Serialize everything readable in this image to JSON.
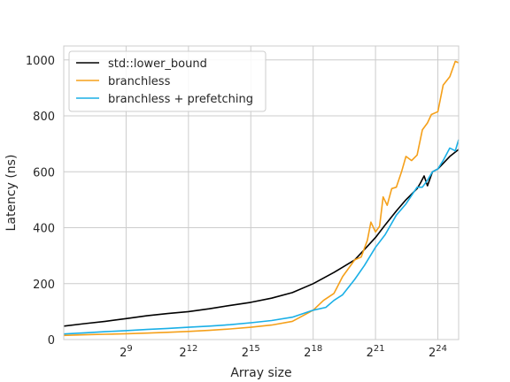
{
  "chart_data": {
    "type": "line",
    "title": "",
    "xlabel": "Array size",
    "ylabel": "Latency (ns)",
    "x_scale": "log2",
    "x_unit": "array size (elements)",
    "xlim": [
      64,
      33554432
    ],
    "ylim": [
      0,
      1050
    ],
    "grid": true,
    "legend_position": "top-left",
    "x_ticks": [
      {
        "value": 512,
        "base": "2",
        "exp": "9"
      },
      {
        "value": 4096,
        "base": "2",
        "exp": "12"
      },
      {
        "value": 32768,
        "base": "2",
        "exp": "15"
      },
      {
        "value": 262144,
        "base": "2",
        "exp": "18"
      },
      {
        "value": 2097152,
        "base": "2",
        "exp": "21"
      },
      {
        "value": 16777216,
        "base": "2",
        "exp": "24"
      }
    ],
    "y_ticks": [
      0,
      200,
      400,
      600,
      800,
      1000
    ],
    "series": [
      {
        "name": "std::lower_bound",
        "color": "#000000",
        "x": [
          64,
          128,
          256,
          512,
          1024,
          2048,
          4096,
          8192,
          16384,
          32768,
          65536,
          131072,
          262144,
          524288,
          1048576,
          1448155,
          2097152,
          2896309,
          4194304,
          5792619,
          8388608,
          9408000,
          10600000,
          11863283,
          14000000,
          16777216,
          20000000,
          25000000,
          33554432
        ],
        "y": [
          48,
          57,
          65,
          75,
          85,
          93,
          100,
          110,
          122,
          133,
          148,
          168,
          200,
          240,
          285,
          322,
          365,
          410,
          460,
          500,
          540,
          560,
          585,
          550,
          600,
          610,
          630,
          655,
          680
        ]
      },
      {
        "name": "branchless",
        "color": "#f5a01a",
        "x": [
          64,
          128,
          256,
          512,
          1024,
          2048,
          4096,
          8192,
          16384,
          32768,
          65536,
          131072,
          262144,
          370000,
          524288,
          700000,
          1048576,
          1300000,
          1600000,
          1800000,
          2097152,
          2400000,
          2700000,
          3100000,
          3600000,
          4194304,
          5000000,
          5792619,
          7000000,
          8388608,
          10000000,
          11863283,
          13500000,
          16777216,
          20000000,
          25000000,
          30000000,
          33554432
        ],
        "y": [
          15,
          17,
          19,
          21,
          23,
          26,
          29,
          33,
          38,
          44,
          52,
          65,
          105,
          140,
          165,
          225,
          285,
          295,
          355,
          420,
          385,
          405,
          510,
          480,
          540,
          545,
          600,
          655,
          640,
          660,
          750,
          775,
          805,
          815,
          910,
          940,
          995,
          990
        ]
      },
      {
        "name": "branchless + prefetching",
        "color": "#1aafe6",
        "x": [
          64,
          128,
          256,
          512,
          1024,
          2048,
          4096,
          8192,
          16384,
          32768,
          65536,
          131072,
          262144,
          400000,
          524288,
          700000,
          1048576,
          1448155,
          2097152,
          2896309,
          4194304,
          5792619,
          8388608,
          10000000,
          11863283,
          14000000,
          16777216,
          20000000,
          25000000,
          30000000,
          33554432
        ],
        "y": [
          20,
          24,
          28,
          32,
          36,
          40,
          44,
          48,
          53,
          60,
          68,
          80,
          105,
          115,
          140,
          160,
          215,
          265,
          330,
          375,
          445,
          485,
          545,
          545,
          570,
          600,
          610,
          640,
          685,
          675,
          715
        ]
      }
    ]
  }
}
